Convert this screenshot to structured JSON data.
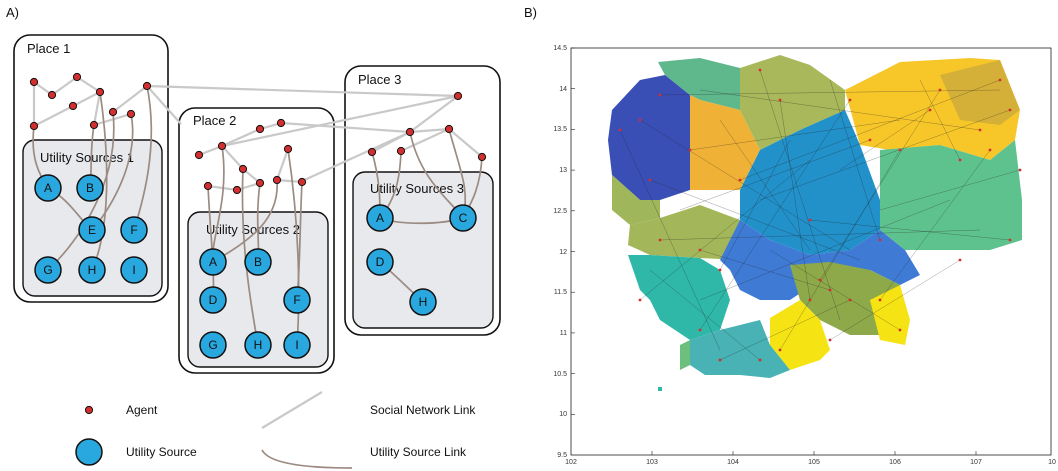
{
  "panels": {
    "a_label": "A)",
    "b_label": "B)"
  },
  "places": [
    {
      "id": "p1",
      "title": "Place 1",
      "sub_title": "Utility Sources 1",
      "nodes": [
        "A",
        "B",
        "E",
        "F",
        "G",
        "H",
        "I"
      ]
    },
    {
      "id": "p2",
      "title": "Place 2",
      "sub_title": "Utility Sources 2",
      "nodes": [
        "A",
        "B",
        "D",
        "F",
        "G",
        "H",
        "I"
      ]
    },
    {
      "id": "p3",
      "title": "Place 3",
      "sub_title": "Utility Sources 3",
      "nodes": [
        "A",
        "C",
        "D",
        "H"
      ]
    }
  ],
  "legend": {
    "agent": "Agent",
    "utility_source": "Utility Source",
    "social_link": "Social Network Link",
    "utility_link": "Utility Source Link"
  },
  "colors": {
    "agent_fill": "#d32f2f",
    "utility_fill": "#29a8df",
    "social_link": "#c8c8c8",
    "utility_link": "#9a8a80",
    "box_fill": "#e8e9ec"
  },
  "map": {
    "x_ticks": [
      "102",
      "103",
      "104",
      "105",
      "106",
      "107",
      "10"
    ],
    "y_ticks": [
      "14.5",
      "14",
      "13.5",
      "13",
      "12.5",
      "12",
      "11.5",
      "11",
      "10.5",
      "10",
      "9.5"
    ],
    "xlim": [
      102,
      108
    ],
    "ylim": [
      9.5,
      14.5
    ]
  }
}
